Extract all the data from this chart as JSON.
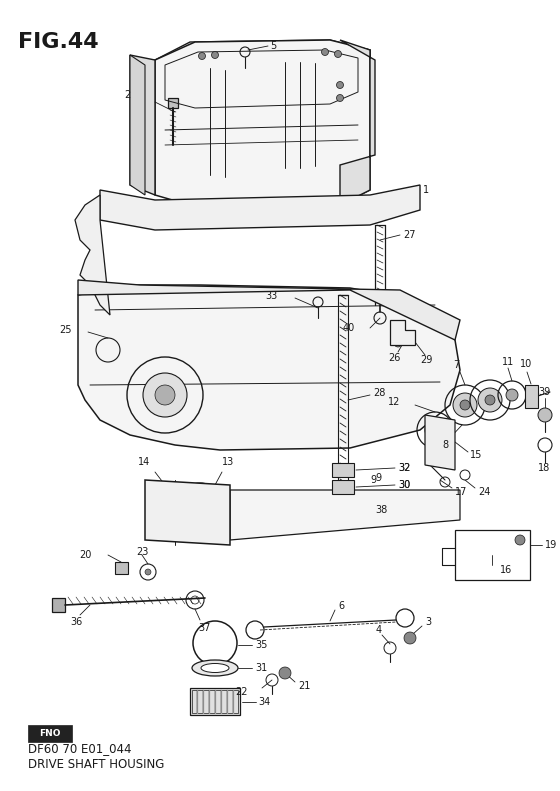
{
  "title": "FIG.44",
  "footer_line1": "DF60 70 E01_044",
  "footer_line2": "DRIVE SHAFT HOUSING",
  "bg_color": "#ffffff",
  "line_color": "#1a1a1a",
  "fig_width": 5.6,
  "fig_height": 7.91,
  "dpi": 100,
  "title_fontsize": 16,
  "footer_fontsize": 8.5,
  "label_fontsize": 7
}
